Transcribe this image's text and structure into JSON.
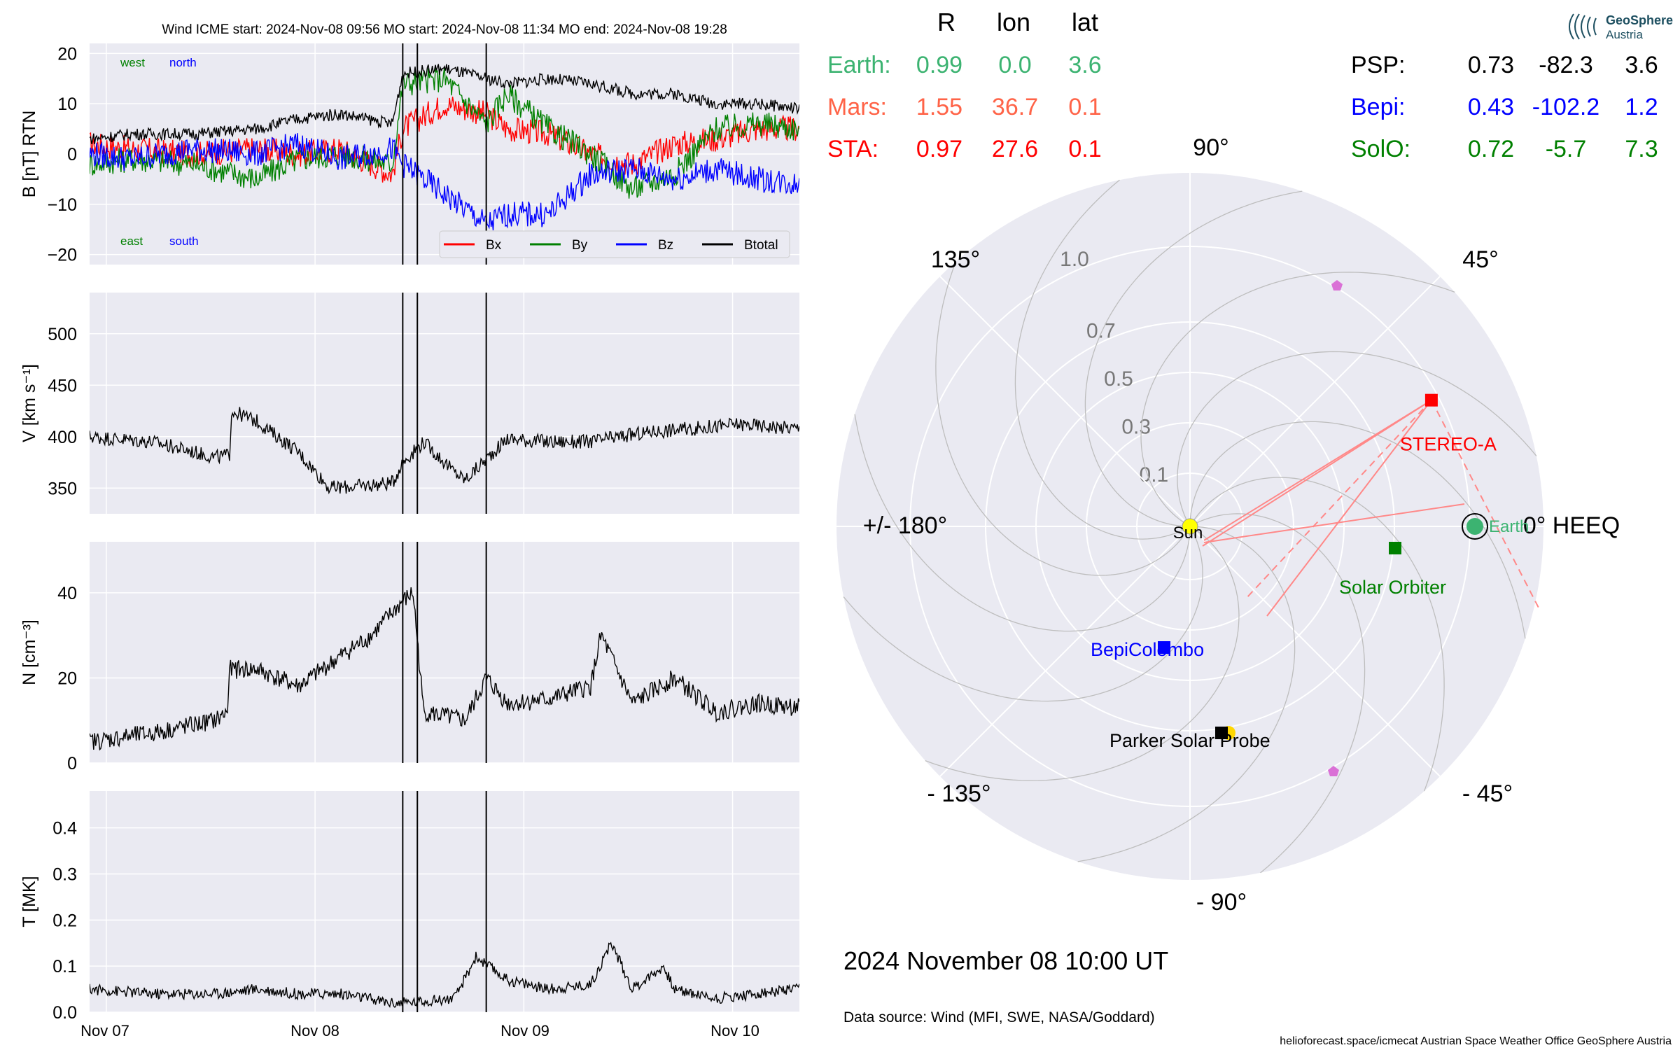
{
  "header": {
    "text": "Wind    ICME start: 2024-Nov-08 09:56   MO start: 2024-Nov-08 11:34   MO end: 2024-Nov-08 19:28"
  },
  "footer": {
    "date": "2024 November 08  10:00 UT",
    "source": "Data source: Wind (MFI, SWE, NASA/Goddard)",
    "credits": "helioforecast.space/icmecat   Austrian Space Weather Office   GeoSphere Austria"
  },
  "logo": {
    "line1": "GeoSphere",
    "line2": "Austria"
  },
  "positions_table": {
    "headers": [
      "R",
      "lon",
      "lat"
    ],
    "left_rows": [
      {
        "name": "Earth:",
        "r": "0.99",
        "lon": "0.0",
        "lat": "3.6",
        "color": "#3cb371"
      },
      {
        "name": "Mars:",
        "r": "1.55",
        "lon": "36.7",
        "lat": "0.1",
        "color": "#ff6347"
      },
      {
        "name": "STA:",
        "r": "0.97",
        "lon": "27.6",
        "lat": "0.1",
        "color": "#ff0000"
      }
    ],
    "right_rows": [
      {
        "name": "PSP:",
        "r": "0.73",
        "lon": "-82.3",
        "lat": "3.6",
        "color": "#000000"
      },
      {
        "name": "Bepi:",
        "r": "0.43",
        "lon": "-102.2",
        "lat": "1.2",
        "color": "#0000ff"
      },
      {
        "name": "SolO:",
        "r": "0.72",
        "lon": "-5.7",
        "lat": "7.3",
        "color": "#008000"
      }
    ]
  },
  "chart_data": [
    {
      "type": "line",
      "panel": "B",
      "ylabel": "B [nT] RTN",
      "ylim": [
        -22,
        22
      ],
      "yticks": [
        "20",
        "10",
        "0",
        "−10",
        "−20"
      ],
      "ytick_values": [
        20,
        10,
        0,
        -10,
        -20
      ],
      "annotations": {
        "west": "west",
        "north": "north",
        "east": "east",
        "south": "south"
      },
      "legend": {
        "placement": "lower-right",
        "entries": [
          "Bx",
          "By",
          "Bz",
          "Btotal"
        ]
      },
      "colors": {
        "Bx": "#ff0000",
        "By": "#008000",
        "Bz": "#0000ff",
        "Btotal": "#000000"
      },
      "series": [
        {
          "name": "Bx",
          "x": [
            0,
            0.2,
            0.5,
            0.8,
            1.0,
            1.2,
            1.45,
            1.5,
            1.7,
            1.9,
            2.0,
            2.2,
            2.4,
            2.6,
            2.8,
            3.0,
            3.2,
            3.4
          ],
          "values": [
            2,
            1,
            0,
            1,
            0,
            1,
            -4,
            5,
            10,
            8,
            5,
            4,
            0,
            -2,
            2,
            3,
            5,
            5
          ]
        },
        {
          "name": "By",
          "x": [
            0,
            0.2,
            0.5,
            0.8,
            1.0,
            1.2,
            1.45,
            1.5,
            1.7,
            1.9,
            2.0,
            2.2,
            2.4,
            2.6,
            2.8,
            3.0,
            3.2,
            3.4
          ],
          "values": [
            -2,
            -1,
            -2,
            -5,
            -1,
            0,
            -2,
            14,
            15,
            6,
            12,
            5,
            0,
            -7,
            -4,
            5,
            6,
            5
          ]
        },
        {
          "name": "Bz",
          "x": [
            0,
            0.2,
            0.5,
            0.8,
            1.0,
            1.2,
            1.45,
            1.5,
            1.7,
            1.9,
            2.0,
            2.2,
            2.4,
            2.6,
            2.8,
            3.0,
            3.2,
            3.4
          ],
          "values": [
            0,
            -1,
            1,
            0,
            2,
            -1,
            1,
            -2,
            -8,
            -14,
            -12,
            -12,
            -4,
            -3,
            -5,
            -3,
            -5,
            -6
          ]
        },
        {
          "name": "Btotal",
          "x": [
            0,
            0.2,
            0.5,
            0.8,
            1.0,
            1.2,
            1.45,
            1.5,
            1.7,
            1.9,
            2.0,
            2.2,
            2.4,
            2.6,
            2.8,
            3.0,
            3.2,
            3.4
          ],
          "values": [
            3,
            4,
            4,
            5,
            7,
            8,
            6,
            16,
            17,
            15,
            14,
            15,
            14,
            12,
            12,
            10,
            10,
            9
          ]
        }
      ]
    },
    {
      "type": "line",
      "panel": "V",
      "ylabel": "V [km s⁻¹]",
      "ylim": [
        325,
        540
      ],
      "yticks": [
        "500",
        "450",
        "400",
        "350"
      ],
      "ytick_values": [
        500,
        450,
        400,
        350
      ],
      "series": [
        {
          "name": "V",
          "x": [
            0,
            0.3,
            0.6,
            0.67,
            0.68,
            0.8,
            1.0,
            1.15,
            1.3,
            1.45,
            1.5,
            1.6,
            1.75,
            1.8,
            2.0,
            2.2,
            2.4,
            2.7,
            2.9,
            3.1,
            3.4
          ],
          "values": [
            400,
            395,
            380,
            382,
            425,
            415,
            385,
            350,
            352,
            355,
            375,
            395,
            365,
            358,
            398,
            395,
            395,
            405,
            408,
            412,
            408
          ]
        }
      ]
    },
    {
      "type": "line",
      "panel": "N",
      "ylabel": "N [cm⁻³]",
      "ylim": [
        0,
        52
      ],
      "yticks": [
        "40",
        "20",
        "0"
      ],
      "ytick_values": [
        40,
        20,
        0
      ],
      "series": [
        {
          "name": "N",
          "x": [
            0,
            0.3,
            0.6,
            0.66,
            0.67,
            0.8,
            1.0,
            1.2,
            1.35,
            1.5,
            1.55,
            1.6,
            1.8,
            1.9,
            2.0,
            2.2,
            2.4,
            2.45,
            2.6,
            2.8,
            3.0,
            3.2,
            3.4
          ],
          "values": [
            5,
            7,
            10,
            12,
            22,
            22,
            18,
            25,
            30,
            38,
            40,
            12,
            10,
            20,
            14,
            15,
            18,
            30,
            14,
            20,
            12,
            14,
            13
          ]
        }
      ]
    },
    {
      "type": "line",
      "panel": "T",
      "ylabel": "T [MK]",
      "ylim": [
        0,
        0.48
      ],
      "yticks": [
        "0.4",
        "0.3",
        "0.2",
        "0.1",
        "0.0"
      ],
      "ytick_values": [
        0.4,
        0.3,
        0.2,
        0.1,
        0.0
      ],
      "series": [
        {
          "name": "T",
          "x": [
            0,
            0.3,
            0.6,
            0.8,
            1.0,
            1.2,
            1.45,
            1.5,
            1.75,
            1.85,
            2.0,
            2.2,
            2.4,
            2.5,
            2.6,
            2.75,
            2.8,
            2.9,
            3.0,
            3.2,
            3.4
          ],
          "values": [
            0.05,
            0.04,
            0.04,
            0.05,
            0.04,
            0.04,
            0.02,
            0.02,
            0.03,
            0.12,
            0.07,
            0.05,
            0.06,
            0.15,
            0.05,
            0.1,
            0.05,
            0.04,
            0.03,
            0.04,
            0.05
          ]
        }
      ]
    },
    {
      "type": "scatter",
      "panel": "orbit",
      "projection": "polar",
      "r_ticks": [
        "0.1",
        "0.3",
        "0.5",
        "0.7",
        "1.0"
      ],
      "r_tick_values": [
        0.1,
        0.3,
        0.5,
        0.7,
        1.0
      ],
      "angle_labels": [
        "90°",
        "45°",
        "0° HEEQ",
        "- 45°",
        "- 90°",
        "- 135°",
        "+/- 180°",
        "135°"
      ],
      "bodies": [
        {
          "name": "Sun",
          "r": 0,
          "lon": 0,
          "color": "#ffff00",
          "marker": "circle"
        },
        {
          "name": "Earth",
          "r": 0.99,
          "lon": 0.0,
          "color": "#3cb371",
          "marker": "circle"
        },
        {
          "name": "STEREO-A",
          "r": 0.97,
          "lon": 27.6,
          "color": "#ff0000",
          "marker": "square"
        },
        {
          "name": "Solar Orbiter",
          "r": 0.72,
          "lon": -5.7,
          "color": "#008000",
          "marker": "square"
        },
        {
          "name": "BepiColombo",
          "r": 0.43,
          "lon": -102.2,
          "color": "#0000ff",
          "marker": "square"
        },
        {
          "name": "Parker Solar Probe",
          "r": 0.73,
          "lon": -82.3,
          "color": "#000000",
          "marker": "square"
        }
      ]
    }
  ]
}
